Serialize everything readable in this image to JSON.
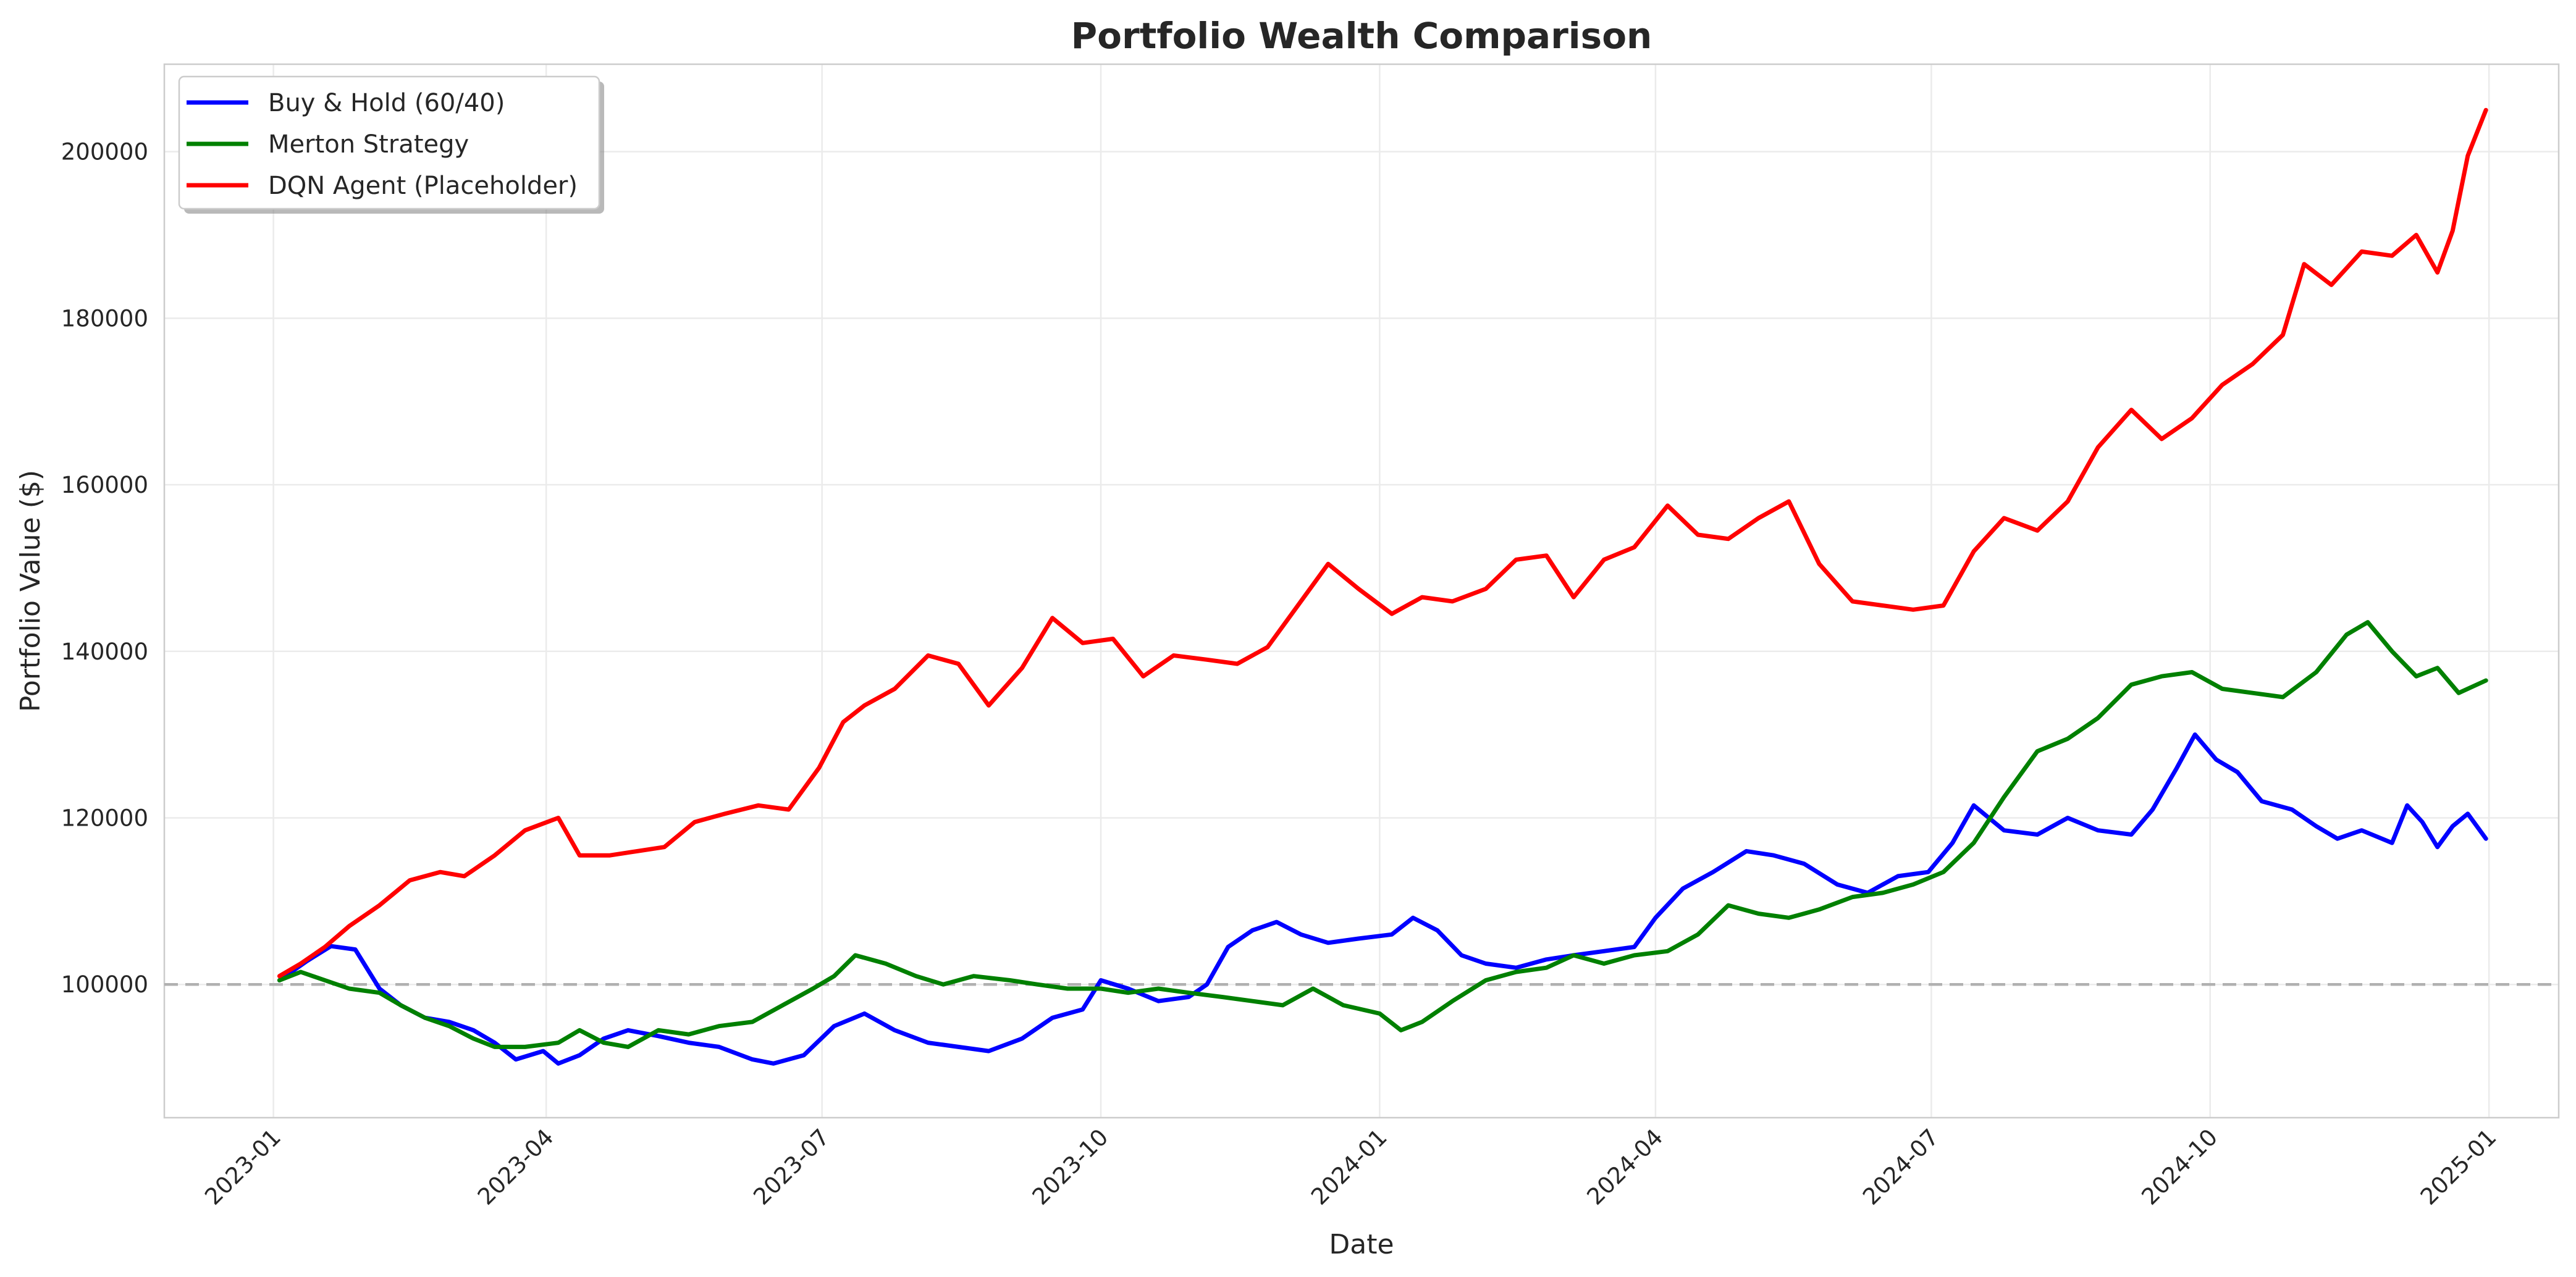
{
  "chart_data": {
    "type": "line",
    "title": "Portfolio Wealth Comparison",
    "xlabel": "Date",
    "ylabel": "Portfolio Value ($)",
    "x_ticks": [
      "2023-01",
      "2023-04",
      "2023-07",
      "2023-10",
      "2024-01",
      "2024-04",
      "2024-07",
      "2024-10",
      "2025-01"
    ],
    "xlim": [
      "2022-11-26",
      "2025-01-24"
    ],
    "y_ticks": [
      "100000",
      "120000",
      "140000",
      "160000",
      "180000",
      "200000"
    ],
    "ylim": [
      84000,
      210500
    ],
    "grid": true,
    "legend_position": "top-left",
    "reference_line": {
      "y": 100000,
      "style": "dashed",
      "color": "#b0b0b0"
    },
    "series": [
      {
        "name": "Buy & Hold (60/40)",
        "color": "#0000ff",
        "points": [
          [
            "2023-01-03",
            100500
          ],
          [
            "2023-01-12",
            102800
          ],
          [
            "2023-01-20",
            104600
          ],
          [
            "2023-01-28",
            104200
          ],
          [
            "2023-02-05",
            99500
          ],
          [
            "2023-02-12",
            97500
          ],
          [
            "2023-02-20",
            96000
          ],
          [
            "2023-02-28",
            95500
          ],
          [
            "2023-03-08",
            94500
          ],
          [
            "2023-03-15",
            93000
          ],
          [
            "2023-03-22",
            91000
          ],
          [
            "2023-03-31",
            92000
          ],
          [
            "2023-04-05",
            90500
          ],
          [
            "2023-04-12",
            91500
          ],
          [
            "2023-04-20",
            93500
          ],
          [
            "2023-04-28",
            94500
          ],
          [
            "2023-05-08",
            93800
          ],
          [
            "2023-05-18",
            93000
          ],
          [
            "2023-05-28",
            92500
          ],
          [
            "2023-06-08",
            91000
          ],
          [
            "2023-06-15",
            90500
          ],
          [
            "2023-06-25",
            91500
          ],
          [
            "2023-07-05",
            95000
          ],
          [
            "2023-07-15",
            96500
          ],
          [
            "2023-07-25",
            94500
          ],
          [
            "2023-08-05",
            93000
          ],
          [
            "2023-08-15",
            92500
          ],
          [
            "2023-08-25",
            92000
          ],
          [
            "2023-09-05",
            93500
          ],
          [
            "2023-09-15",
            96000
          ],
          [
            "2023-09-25",
            97000
          ],
          [
            "2023-10-01",
            100500
          ],
          [
            "2023-10-10",
            99500
          ],
          [
            "2023-10-20",
            98000
          ],
          [
            "2023-10-30",
            98500
          ],
          [
            "2023-11-05",
            100000
          ],
          [
            "2023-11-12",
            104500
          ],
          [
            "2023-11-20",
            106500
          ],
          [
            "2023-11-28",
            107500
          ],
          [
            "2023-12-06",
            106000
          ],
          [
            "2023-12-15",
            105000
          ],
          [
            "2023-12-25",
            105500
          ],
          [
            "2024-01-05",
            106000
          ],
          [
            "2024-01-12",
            108000
          ],
          [
            "2024-01-20",
            106500
          ],
          [
            "2024-01-28",
            103500
          ],
          [
            "2024-02-05",
            102500
          ],
          [
            "2024-02-15",
            102000
          ],
          [
            "2024-02-25",
            103000
          ],
          [
            "2024-03-05",
            103500
          ],
          [
            "2024-03-15",
            104000
          ],
          [
            "2024-03-25",
            104500
          ],
          [
            "2024-04-01",
            108000
          ],
          [
            "2024-04-10",
            111500
          ],
          [
            "2024-04-20",
            113500
          ],
          [
            "2024-05-01",
            116000
          ],
          [
            "2024-05-10",
            115500
          ],
          [
            "2024-05-20",
            114500
          ],
          [
            "2024-05-31",
            112000
          ],
          [
            "2024-06-10",
            111000
          ],
          [
            "2024-06-20",
            113000
          ],
          [
            "2024-06-30",
            113500
          ],
          [
            "2024-07-08",
            117000
          ],
          [
            "2024-07-15",
            121500
          ],
          [
            "2024-07-25",
            118500
          ],
          [
            "2024-08-05",
            118000
          ],
          [
            "2024-08-15",
            120000
          ],
          [
            "2024-08-25",
            118500
          ],
          [
            "2024-09-05",
            118000
          ],
          [
            "2024-09-12",
            121000
          ],
          [
            "2024-09-20",
            126000
          ],
          [
            "2024-09-26",
            130000
          ],
          [
            "2024-10-03",
            127000
          ],
          [
            "2024-10-10",
            125500
          ],
          [
            "2024-10-18",
            122000
          ],
          [
            "2024-10-28",
            121000
          ],
          [
            "2024-11-05",
            119000
          ],
          [
            "2024-11-12",
            117500
          ],
          [
            "2024-11-20",
            118500
          ],
          [
            "2024-11-30",
            117000
          ],
          [
            "2024-12-05",
            121500
          ],
          [
            "2024-12-10",
            119500
          ],
          [
            "2024-12-15",
            116500
          ],
          [
            "2024-12-20",
            119000
          ],
          [
            "2024-12-25",
            120500
          ],
          [
            "2024-12-31",
            117500
          ]
        ]
      },
      {
        "name": "Merton Strategy",
        "color": "#008000",
        "points": [
          [
            "2023-01-03",
            100500
          ],
          [
            "2023-01-10",
            101500
          ],
          [
            "2023-01-18",
            100500
          ],
          [
            "2023-01-26",
            99500
          ],
          [
            "2023-02-05",
            99000
          ],
          [
            "2023-02-12",
            97500
          ],
          [
            "2023-02-20",
            96000
          ],
          [
            "2023-02-28",
            95000
          ],
          [
            "2023-03-08",
            93500
          ],
          [
            "2023-03-15",
            92500
          ],
          [
            "2023-03-25",
            92500
          ],
          [
            "2023-04-05",
            93000
          ],
          [
            "2023-04-12",
            94500
          ],
          [
            "2023-04-20",
            93000
          ],
          [
            "2023-04-28",
            92500
          ],
          [
            "2023-05-08",
            94500
          ],
          [
            "2023-05-18",
            94000
          ],
          [
            "2023-05-28",
            95000
          ],
          [
            "2023-06-08",
            95500
          ],
          [
            "2023-06-18",
            97500
          ],
          [
            "2023-06-28",
            99500
          ],
          [
            "2023-07-05",
            101000
          ],
          [
            "2023-07-12",
            103500
          ],
          [
            "2023-07-22",
            102500
          ],
          [
            "2023-08-01",
            101000
          ],
          [
            "2023-08-10",
            100000
          ],
          [
            "2023-08-20",
            101000
          ],
          [
            "2023-09-01",
            100500
          ],
          [
            "2023-09-10",
            100000
          ],
          [
            "2023-09-20",
            99500
          ],
          [
            "2023-10-01",
            99500
          ],
          [
            "2023-10-10",
            99000
          ],
          [
            "2023-10-20",
            99500
          ],
          [
            "2023-10-30",
            99000
          ],
          [
            "2023-11-10",
            98500
          ],
          [
            "2023-11-20",
            98000
          ],
          [
            "2023-11-30",
            97500
          ],
          [
            "2023-12-10",
            99500
          ],
          [
            "2023-12-20",
            97500
          ],
          [
            "2024-01-01",
            96500
          ],
          [
            "2024-01-08",
            94500
          ],
          [
            "2024-01-15",
            95500
          ],
          [
            "2024-01-25",
            98000
          ],
          [
            "2024-02-05",
            100500
          ],
          [
            "2024-02-15",
            101500
          ],
          [
            "2024-02-25",
            102000
          ],
          [
            "2024-03-05",
            103500
          ],
          [
            "2024-03-15",
            102500
          ],
          [
            "2024-03-25",
            103500
          ],
          [
            "2024-04-05",
            104000
          ],
          [
            "2024-04-15",
            106000
          ],
          [
            "2024-04-25",
            109500
          ],
          [
            "2024-05-05",
            108500
          ],
          [
            "2024-05-15",
            108000
          ],
          [
            "2024-05-25",
            109000
          ],
          [
            "2024-06-05",
            110500
          ],
          [
            "2024-06-15",
            111000
          ],
          [
            "2024-06-25",
            112000
          ],
          [
            "2024-07-05",
            113500
          ],
          [
            "2024-07-15",
            117000
          ],
          [
            "2024-07-25",
            122500
          ],
          [
            "2024-08-05",
            128000
          ],
          [
            "2024-08-15",
            129500
          ],
          [
            "2024-08-25",
            132000
          ],
          [
            "2024-09-05",
            136000
          ],
          [
            "2024-09-15",
            137000
          ],
          [
            "2024-09-25",
            137500
          ],
          [
            "2024-10-05",
            135500
          ],
          [
            "2024-10-15",
            135000
          ],
          [
            "2024-10-25",
            134500
          ],
          [
            "2024-11-05",
            137500
          ],
          [
            "2024-11-15",
            142000
          ],
          [
            "2024-11-22",
            143500
          ],
          [
            "2024-11-30",
            140000
          ],
          [
            "2024-12-08",
            137000
          ],
          [
            "2024-12-15",
            138000
          ],
          [
            "2024-12-22",
            135000
          ],
          [
            "2024-12-31",
            136500
          ]
        ]
      },
      {
        "name": "DQN Agent (Placeholder)",
        "color": "#ff0000",
        "points": [
          [
            "2023-01-03",
            101000
          ],
          [
            "2023-01-10",
            102500
          ],
          [
            "2023-01-18",
            104500
          ],
          [
            "2023-01-26",
            107000
          ],
          [
            "2023-02-05",
            109500
          ],
          [
            "2023-02-15",
            112500
          ],
          [
            "2023-02-25",
            113500
          ],
          [
            "2023-03-05",
            113000
          ],
          [
            "2023-03-15",
            115500
          ],
          [
            "2023-03-25",
            118500
          ],
          [
            "2023-04-05",
            120000
          ],
          [
            "2023-04-12",
            115500
          ],
          [
            "2023-04-22",
            115500
          ],
          [
            "2023-05-01",
            116000
          ],
          [
            "2023-05-10",
            116500
          ],
          [
            "2023-05-20",
            119500
          ],
          [
            "2023-05-30",
            120500
          ],
          [
            "2023-06-10",
            121500
          ],
          [
            "2023-06-20",
            121000
          ],
          [
            "2023-06-30",
            126000
          ],
          [
            "2023-07-08",
            131500
          ],
          [
            "2023-07-15",
            133500
          ],
          [
            "2023-07-25",
            135500
          ],
          [
            "2023-08-05",
            139500
          ],
          [
            "2023-08-15",
            138500
          ],
          [
            "2023-08-25",
            133500
          ],
          [
            "2023-09-05",
            138000
          ],
          [
            "2023-09-15",
            144000
          ],
          [
            "2023-09-25",
            141000
          ],
          [
            "2023-10-05",
            141500
          ],
          [
            "2023-10-15",
            137000
          ],
          [
            "2023-10-25",
            139500
          ],
          [
            "2023-11-05",
            139000
          ],
          [
            "2023-11-15",
            138500
          ],
          [
            "2023-11-25",
            140500
          ],
          [
            "2023-12-05",
            145500
          ],
          [
            "2023-12-15",
            150500
          ],
          [
            "2023-12-25",
            147500
          ],
          [
            "2024-01-05",
            144500
          ],
          [
            "2024-01-15",
            146500
          ],
          [
            "2024-01-25",
            146000
          ],
          [
            "2024-02-05",
            147500
          ],
          [
            "2024-02-15",
            151000
          ],
          [
            "2024-02-25",
            151500
          ],
          [
            "2024-03-05",
            146500
          ],
          [
            "2024-03-15",
            151000
          ],
          [
            "2024-03-25",
            152500
          ],
          [
            "2024-04-05",
            157500
          ],
          [
            "2024-04-15",
            154000
          ],
          [
            "2024-04-25",
            153500
          ],
          [
            "2024-05-05",
            156000
          ],
          [
            "2024-05-15",
            158000
          ],
          [
            "2024-05-25",
            150500
          ],
          [
            "2024-06-05",
            146000
          ],
          [
            "2024-06-15",
            145500
          ],
          [
            "2024-06-25",
            145000
          ],
          [
            "2024-07-05",
            145500
          ],
          [
            "2024-07-15",
            152000
          ],
          [
            "2024-07-25",
            156000
          ],
          [
            "2024-08-05",
            154500
          ],
          [
            "2024-08-15",
            158000
          ],
          [
            "2024-08-25",
            164500
          ],
          [
            "2024-09-05",
            169000
          ],
          [
            "2024-09-15",
            165500
          ],
          [
            "2024-09-25",
            168000
          ],
          [
            "2024-10-05",
            172000
          ],
          [
            "2024-10-15",
            174500
          ],
          [
            "2024-10-25",
            178000
          ],
          [
            "2024-11-01",
            186500
          ],
          [
            "2024-11-10",
            184000
          ],
          [
            "2024-11-20",
            188000
          ],
          [
            "2024-11-30",
            187500
          ],
          [
            "2024-12-08",
            190000
          ],
          [
            "2024-12-15",
            185500
          ],
          [
            "2024-12-20",
            190500
          ],
          [
            "2024-12-25",
            199500
          ],
          [
            "2024-12-31",
            205000
          ]
        ]
      }
    ]
  }
}
